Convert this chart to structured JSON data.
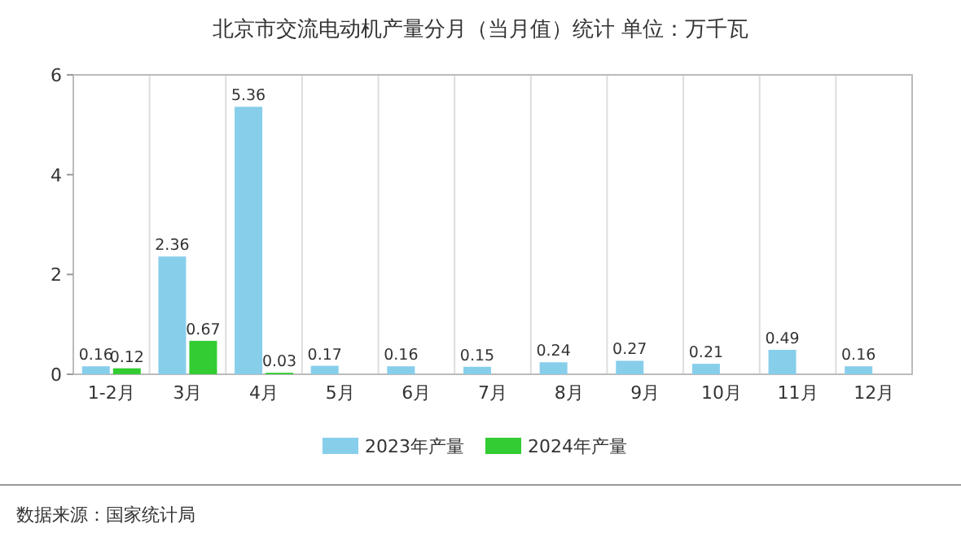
{
  "chart_data": {
    "type": "bar",
    "title": "北京市交流电动机产量分月（当月值）统计  单位：万千瓦",
    "categories": [
      "1-2月",
      "3月",
      "4月",
      "5月",
      "6月",
      "7月",
      "8月",
      "9月",
      "10月",
      "11月",
      "12月"
    ],
    "series": [
      {
        "name": "2023年产量",
        "color": "#87ceeb",
        "values": [
          0.16,
          2.36,
          5.36,
          0.17,
          0.16,
          0.15,
          0.24,
          0.27,
          0.21,
          0.49,
          0.16
        ]
      },
      {
        "name": "2024年产量",
        "color": "#33cc33",
        "values": [
          0.12,
          0.67,
          0.03,
          null,
          null,
          null,
          null,
          null,
          null,
          null,
          null
        ]
      }
    ],
    "ylim": [
      0,
      6
    ],
    "yticks": [
      0,
      2,
      4,
      6
    ],
    "grid": "x",
    "legend": "bottom",
    "data_labels": true,
    "annotations": [
      "数据来源：国家统计局"
    ]
  }
}
